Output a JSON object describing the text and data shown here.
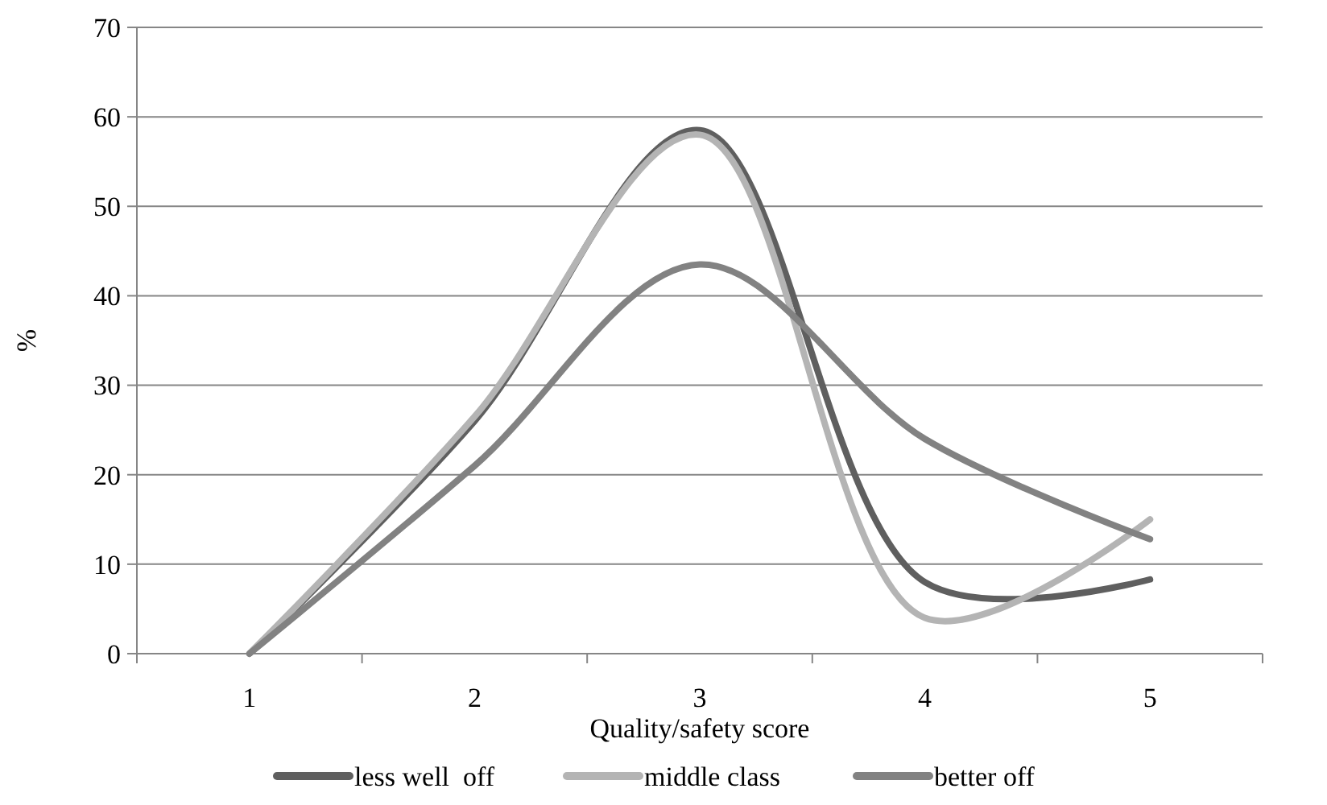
{
  "chart_data": {
    "type": "line",
    "xlabel": "Quality/safety score",
    "ylabel": "%",
    "categories": [
      "1",
      "2",
      "3",
      "4",
      "5"
    ],
    "series": [
      {
        "name": "less well  off",
        "color": "#5f5f5f",
        "values": [
          0,
          26,
          58.5,
          8,
          8.3
        ]
      },
      {
        "name": "middle class",
        "color": "#b4b4b4",
        "values": [
          0,
          26.5,
          58,
          4,
          15
        ]
      },
      {
        "name": "better off",
        "color": "#828282",
        "values": [
          0,
          21,
          43.5,
          24,
          12.8
        ]
      }
    ],
    "ylim": [
      0,
      70
    ],
    "yticks": [
      0,
      10,
      20,
      30,
      40,
      50,
      60,
      70
    ],
    "grid": "y",
    "legend": "bottom",
    "marker": "none",
    "line_style": "solid"
  }
}
